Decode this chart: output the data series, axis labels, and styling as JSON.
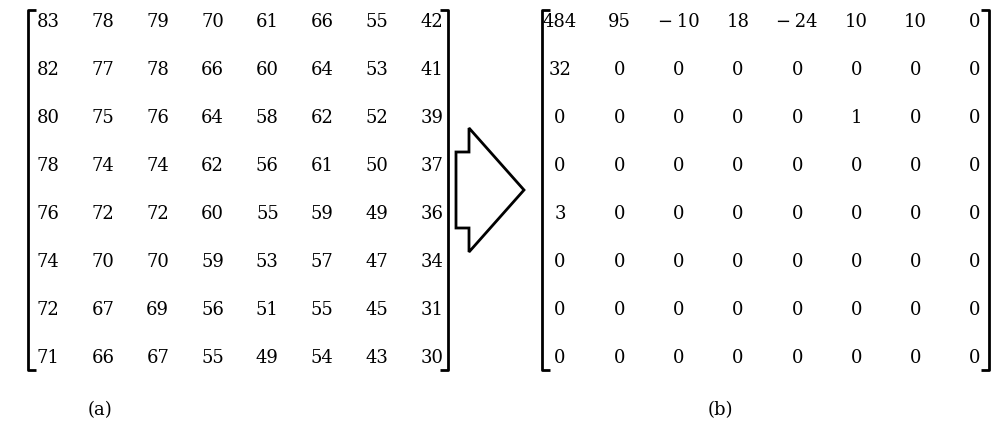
{
  "matrix_a": [
    [
      83,
      78,
      79,
      70,
      61,
      66,
      55,
      42
    ],
    [
      82,
      77,
      78,
      66,
      60,
      64,
      53,
      41
    ],
    [
      80,
      75,
      76,
      64,
      58,
      62,
      52,
      39
    ],
    [
      78,
      74,
      74,
      62,
      56,
      61,
      50,
      37
    ],
    [
      76,
      72,
      72,
      60,
      55,
      59,
      49,
      36
    ],
    [
      74,
      70,
      70,
      59,
      53,
      57,
      47,
      34
    ],
    [
      72,
      67,
      69,
      56,
      51,
      55,
      45,
      31
    ],
    [
      71,
      66,
      67,
      55,
      49,
      54,
      43,
      30
    ]
  ],
  "matrix_b": [
    [
      484,
      95,
      -10,
      18,
      -24,
      10,
      10,
      0
    ],
    [
      32,
      0,
      0,
      0,
      0,
      0,
      0,
      0
    ],
    [
      0,
      0,
      0,
      0,
      0,
      1,
      0,
      0
    ],
    [
      0,
      0,
      0,
      0,
      0,
      0,
      0,
      0
    ],
    [
      3,
      0,
      0,
      0,
      0,
      0,
      0,
      0
    ],
    [
      0,
      0,
      0,
      0,
      0,
      0,
      0,
      0
    ],
    [
      0,
      0,
      0,
      0,
      0,
      0,
      0,
      0
    ],
    [
      0,
      0,
      0,
      0,
      0,
      0,
      0,
      0
    ]
  ],
  "label_a": "(a)",
  "label_b": "(b)",
  "bg_color": "#ffffff",
  "text_color": "#000000",
  "bracket_color": "#000000",
  "font_size": 13,
  "label_font_size": 13
}
